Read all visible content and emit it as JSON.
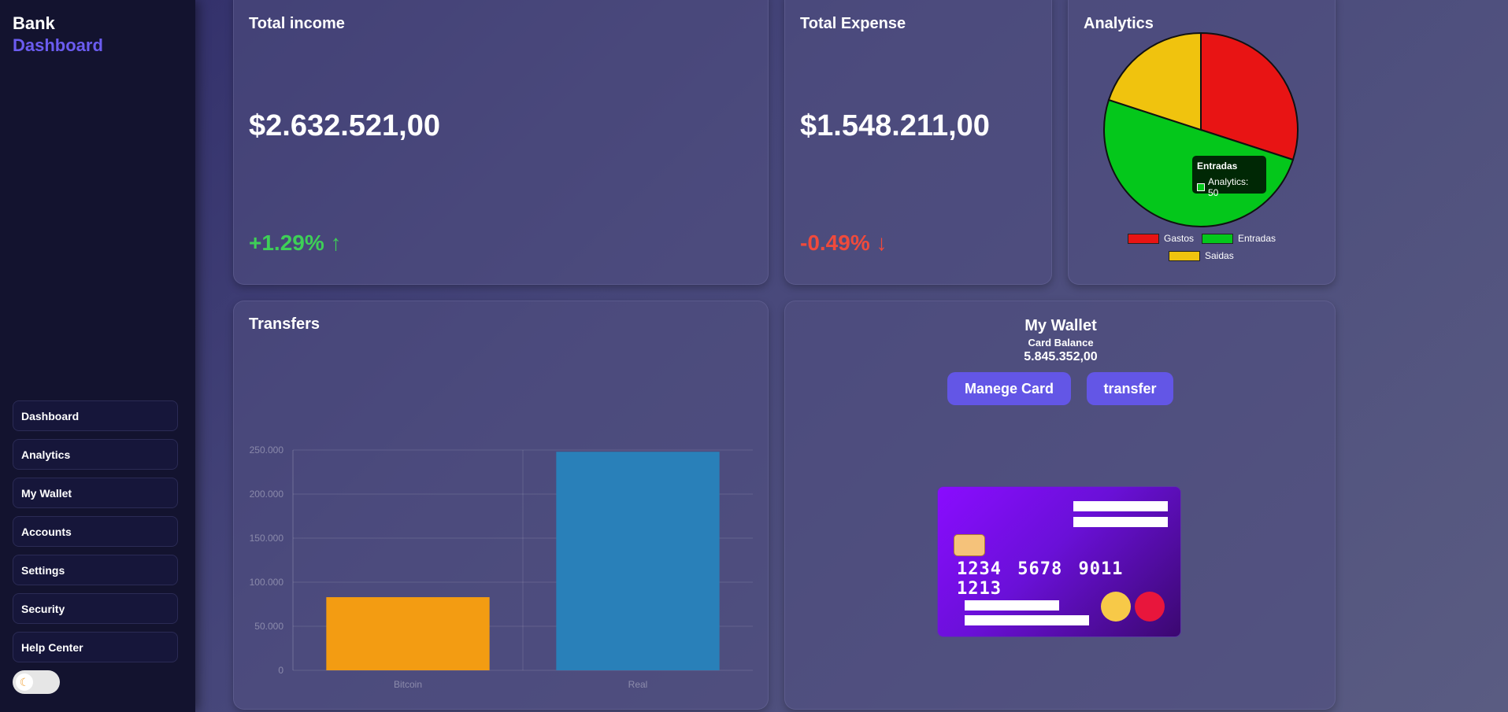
{
  "brand": {
    "line1": "Bank",
    "line2": "Dashboard"
  },
  "nav": [
    "Dashboard",
    "Analytics",
    "My Wallet",
    "Accounts",
    "Settings",
    "Security",
    "Help Center"
  ],
  "theme_toggle": {
    "icon": "moon-icon",
    "state": "light"
  },
  "income": {
    "title": "Total income",
    "amount": "$2.632.521,00",
    "change": "+1.29% ↑"
  },
  "expense": {
    "title": "Total Expense",
    "amount": "$1.548.211,00",
    "change": "-0.49% ↓"
  },
  "analytics": {
    "title": "Analytics",
    "tooltip": {
      "title": "Entradas",
      "value": "Analytics: 50"
    }
  },
  "transfers": {
    "title": "Transfers"
  },
  "wallet": {
    "title": "My Wallet",
    "subtitle": "Card Balance",
    "balance": "5.845.352,00",
    "manage_label": "Manege Card",
    "transfer_label": "transfer",
    "card_number": "1234 5678 9011 1213"
  },
  "colors": {
    "accent": "#6356e6",
    "positive": "#3ecf57",
    "negative": "#ef4a3c"
  },
  "chart_data": [
    {
      "type": "pie",
      "title": "Analytics",
      "categories": [
        "Gastos",
        "Entradas",
        "Saidas"
      ],
      "values": [
        30,
        50,
        20
      ],
      "colors": [
        "#e81414",
        "#04c71b",
        "#f0c30e"
      ],
      "legend": "bottom"
    },
    {
      "type": "bar",
      "title": "Transfers",
      "categories": [
        "Bitcoin",
        "Real"
      ],
      "values": [
        83000,
        248000
      ],
      "colors": [
        "#f39c12",
        "#2980b9"
      ],
      "yticks": [
        "0",
        "50.000",
        "100.000",
        "150.000",
        "200.000",
        "250.000"
      ],
      "ylim": [
        0,
        250000
      ],
      "grid": true
    }
  ]
}
